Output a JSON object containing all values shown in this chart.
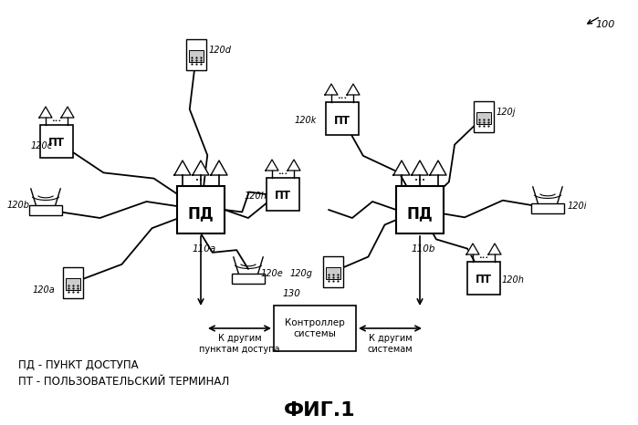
{
  "bg_color": "#ffffff",
  "title": "ФИГ.1",
  "legend1": "ПД - ПУНКТ ДОСТУПА",
  "legend2": "ПТ - ПОЛЬЗОВАТЕЛЬСКИЙ ТЕРМИНАЛ",
  "label_100": "100",
  "ap1_label": "ПД",
  "ap2_label": "ПД",
  "ap1_id": "110a",
  "ap2_id": "110b",
  "ctrl_label": "Контроллер\nсистемы",
  "ctrl_id": "130",
  "left_arrow_label": "К другим\nпунктам доступа",
  "right_arrow_label": "К другим\nсистемам"
}
